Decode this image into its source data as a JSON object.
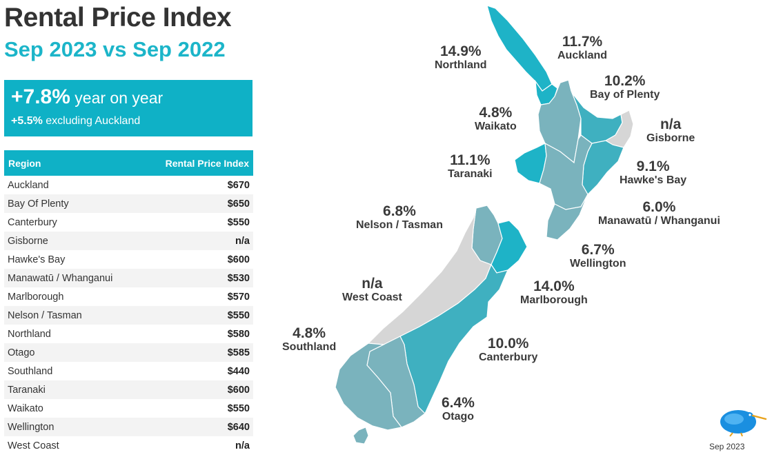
{
  "header": {
    "title": "Rental Price Index",
    "subtitle": "Sep 2023 vs Sep 2022"
  },
  "highlight": {
    "headline_value": "+7.8%",
    "headline_text": " year on year",
    "sub_value": "+5.5%",
    "sub_text": " excluding Auckland"
  },
  "table": {
    "col_region": "Region",
    "col_index": "Rental Price Index",
    "rows": [
      {
        "region": "Auckland",
        "value": "$670"
      },
      {
        "region": "Bay Of Plenty",
        "value": "$650"
      },
      {
        "region": "Canterbury",
        "value": "$550"
      },
      {
        "region": "Gisborne",
        "value": "n/a"
      },
      {
        "region": "Hawke's Bay",
        "value": "$600"
      },
      {
        "region": "Manawatū / Whanganui",
        "value": "$530"
      },
      {
        "region": "Marlborough",
        "value": "$570"
      },
      {
        "region": "Nelson / Tasman",
        "value": "$550"
      },
      {
        "region": "Northland",
        "value": "$580"
      },
      {
        "region": "Otago",
        "value": "$585"
      },
      {
        "region": "Southland",
        "value": "$440"
      },
      {
        "region": "Taranaki",
        "value": "$600"
      },
      {
        "region": "Waikato",
        "value": "$550"
      },
      {
        "region": "Wellington",
        "value": "$640"
      },
      {
        "region": "West Coast",
        "value": "n/a"
      }
    ]
  },
  "map_labels": {
    "northland": {
      "pct": "14.9%",
      "name": "Northland"
    },
    "auckland": {
      "pct": "11.7%",
      "name": "Auckland"
    },
    "bay_of_plenty": {
      "pct": "10.2%",
      "name": "Bay of Plenty"
    },
    "waikato": {
      "pct": "4.8%",
      "name": "Waikato"
    },
    "gisborne": {
      "pct": "n/a",
      "name": "Gisborne"
    },
    "taranaki": {
      "pct": "11.1%",
      "name": "Taranaki"
    },
    "hawkes_bay": {
      "pct": "9.1%",
      "name": "Hawke's Bay"
    },
    "nelson_tasman": {
      "pct": "6.8%",
      "name": "Nelson / Tasman"
    },
    "manawatu": {
      "pct": "6.0%",
      "name": "Manawatū / Whanganui"
    },
    "wellington": {
      "pct": "6.7%",
      "name": "Wellington"
    },
    "west_coast": {
      "pct": "n/a",
      "name": "West Coast"
    },
    "marlborough": {
      "pct": "14.0%",
      "name": "Marlborough"
    },
    "southland": {
      "pct": "4.8%",
      "name": "Southland"
    },
    "canterbury": {
      "pct": "10.0%",
      "name": "Canterbury"
    },
    "otago": {
      "pct": "6.4%",
      "name": "Otago"
    }
  },
  "footer": {
    "date": "Sep 2023"
  },
  "colors": {
    "accent": "#0fb1c6",
    "high": "#1eb3c7",
    "mid": "#3fb0c0",
    "low": "#7ab3bd",
    "na": "#d6d6d6"
  }
}
